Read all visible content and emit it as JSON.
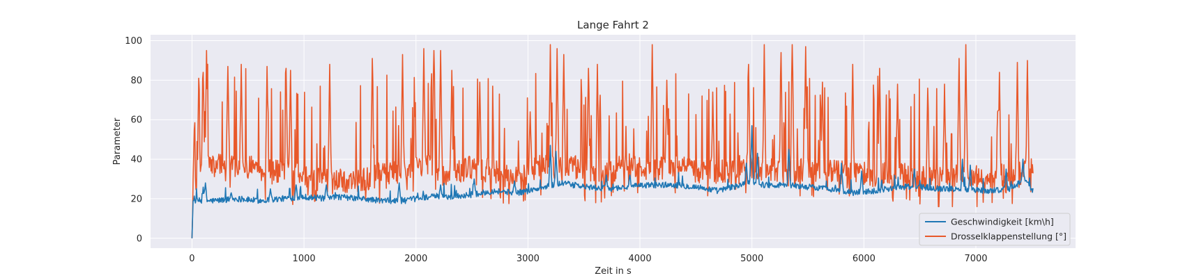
{
  "chart_data": {
    "type": "line",
    "title": "Lange Fahrt 2",
    "xlabel": "Zeit in s",
    "ylabel": "Parameter",
    "xlim": [
      -370,
      7890
    ],
    "ylim": [
      -5,
      103
    ],
    "xticks": [
      0,
      1000,
      2000,
      3000,
      4000,
      5000,
      6000,
      7000
    ],
    "yticks": [
      0,
      20,
      40,
      60,
      80,
      100
    ],
    "grid": true,
    "legend_position": "lower-right",
    "series": [
      {
        "name": "Geschwindigkeit [km\\h]",
        "color": "#1f77b4",
        "base_profile": [
          [
            0,
            0
          ],
          [
            10,
            19
          ],
          [
            200,
            19
          ],
          [
            400,
            20
          ],
          [
            600,
            19
          ],
          [
            800,
            20
          ],
          [
            1000,
            21
          ],
          [
            1200,
            20
          ],
          [
            1300,
            21
          ],
          [
            1500,
            20
          ],
          [
            1700,
            19
          ],
          [
            1900,
            19
          ],
          [
            2100,
            21
          ],
          [
            2300,
            21
          ],
          [
            2500,
            22
          ],
          [
            2700,
            24
          ],
          [
            2900,
            23
          ],
          [
            3100,
            25
          ],
          [
            3300,
            28
          ],
          [
            3500,
            26
          ],
          [
            3700,
            25
          ],
          [
            3900,
            26
          ],
          [
            4100,
            27
          ],
          [
            4300,
            27
          ],
          [
            4500,
            26
          ],
          [
            4700,
            24
          ],
          [
            4900,
            27
          ],
          [
            5000,
            29
          ],
          [
            5100,
            27
          ],
          [
            5300,
            27
          ],
          [
            5500,
            26
          ],
          [
            5700,
            25
          ],
          [
            5900,
            23
          ],
          [
            6100,
            24
          ],
          [
            6300,
            26
          ],
          [
            6500,
            26
          ],
          [
            6700,
            25
          ],
          [
            6900,
            25
          ],
          [
            7100,
            24
          ],
          [
            7300,
            25
          ],
          [
            7450,
            30
          ],
          [
            7500,
            24
          ]
        ],
        "peaks": [
          [
            100,
            25
          ],
          [
            120,
            28
          ],
          [
            350,
            23
          ],
          [
            700,
            25
          ],
          [
            930,
            27
          ],
          [
            1200,
            27
          ],
          [
            1850,
            28
          ],
          [
            2220,
            27
          ],
          [
            2520,
            30
          ],
          [
            2880,
            29
          ],
          [
            3200,
            47
          ],
          [
            3250,
            44
          ],
          [
            3700,
            32
          ],
          [
            3910,
            32
          ],
          [
            4950,
            38
          ],
          [
            5000,
            57
          ],
          [
            5050,
            43
          ],
          [
            5330,
            45
          ],
          [
            5800,
            38
          ],
          [
            5980,
            34
          ],
          [
            6450,
            35
          ],
          [
            6880,
            40
          ],
          [
            6950,
            37
          ],
          [
            7270,
            35
          ],
          [
            7420,
            40
          ]
        ]
      },
      {
        "name": "Drosselklappenstellung [°]",
        "color": "#e8582a",
        "base_profile": [
          [
            0,
            0
          ],
          [
            10,
            20
          ],
          [
            100,
            37
          ],
          [
            300,
            37
          ],
          [
            500,
            36
          ],
          [
            700,
            34
          ],
          [
            900,
            33
          ],
          [
            1100,
            30
          ],
          [
            1300,
            29
          ],
          [
            1500,
            29
          ],
          [
            1700,
            33
          ],
          [
            1900,
            34
          ],
          [
            2100,
            38
          ],
          [
            2300,
            32
          ],
          [
            2500,
            36
          ],
          [
            2700,
            34
          ],
          [
            2900,
            30
          ],
          [
            3100,
            37
          ],
          [
            3300,
            37
          ],
          [
            3500,
            35
          ],
          [
            3700,
            33
          ],
          [
            3900,
            38
          ],
          [
            4100,
            35
          ],
          [
            4300,
            37
          ],
          [
            4500,
            34
          ],
          [
            4700,
            33
          ],
          [
            4900,
            37
          ],
          [
            5100,
            35
          ],
          [
            5300,
            33
          ],
          [
            5500,
            35
          ],
          [
            5700,
            34
          ],
          [
            5900,
            33
          ],
          [
            6100,
            32
          ],
          [
            6300,
            33
          ],
          [
            6500,
            31
          ],
          [
            6700,
            30
          ],
          [
            6900,
            32
          ],
          [
            7100,
            31
          ],
          [
            7300,
            32
          ],
          [
            7500,
            35
          ]
        ],
        "peaks": [
          [
            20,
            55
          ],
          [
            60,
            81
          ],
          [
            100,
            84
          ],
          [
            130,
            95
          ],
          [
            320,
            87
          ],
          [
            440,
            88
          ],
          [
            670,
            87
          ],
          [
            840,
            86
          ],
          [
            880,
            85
          ],
          [
            1230,
            88
          ],
          [
            1610,
            91
          ],
          [
            1880,
            93
          ],
          [
            2070,
            96
          ],
          [
            2160,
            95
          ],
          [
            2220,
            95
          ],
          [
            2320,
            85
          ],
          [
            2570,
            79
          ],
          [
            3020,
            64
          ],
          [
            3200,
            98
          ],
          [
            3260,
            96
          ],
          [
            3320,
            93
          ],
          [
            3540,
            86
          ],
          [
            3620,
            88
          ],
          [
            4110,
            98
          ],
          [
            4240,
            80
          ],
          [
            4650,
            74
          ],
          [
            4970,
            88
          ],
          [
            5110,
            98
          ],
          [
            5260,
            94
          ],
          [
            5360,
            98
          ],
          [
            5480,
            97
          ],
          [
            5630,
            79
          ],
          [
            5900,
            88
          ],
          [
            6140,
            86
          ],
          [
            6300,
            78
          ],
          [
            6570,
            76
          ],
          [
            6720,
            78
          ],
          [
            6850,
            91
          ],
          [
            6910,
            98
          ],
          [
            7210,
            84
          ],
          [
            7370,
            89
          ],
          [
            7460,
            90
          ]
        ]
      }
    ],
    "x_end": 7510
  }
}
